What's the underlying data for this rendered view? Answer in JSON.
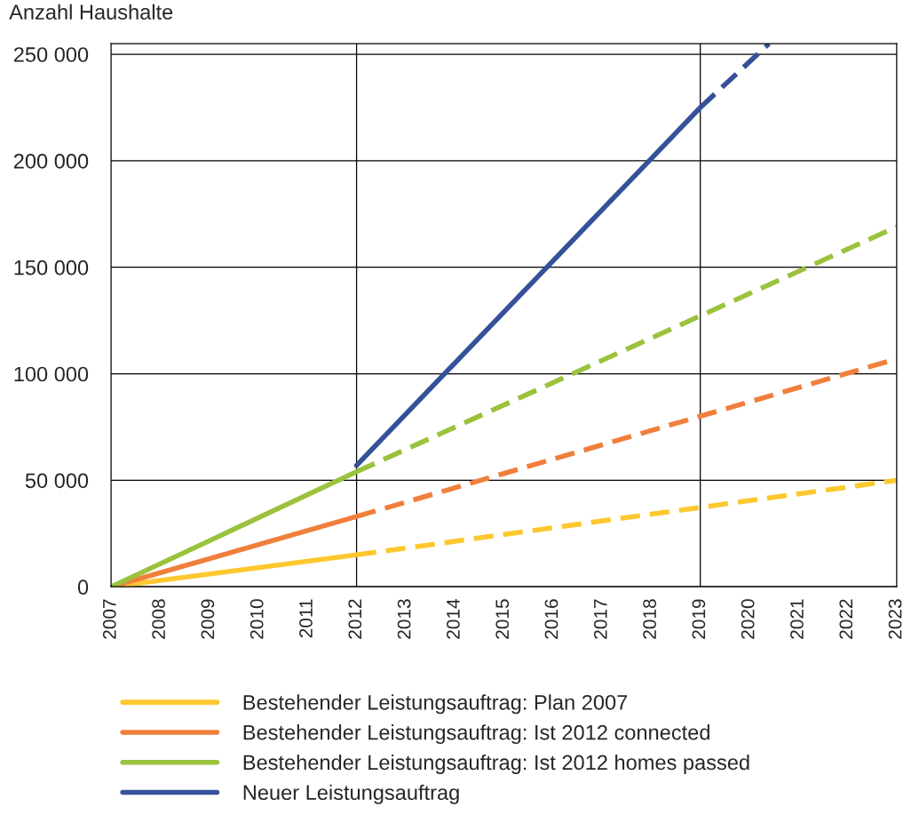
{
  "chart_data": {
    "type": "line",
    "ylabel": "Anzahl Haushalte",
    "xlim": [
      2007,
      2023
    ],
    "xticks": [
      2007,
      2008,
      2009,
      2010,
      2011,
      2012,
      2013,
      2014,
      2015,
      2016,
      2017,
      2018,
      2019,
      2020,
      2021,
      2022,
      2023
    ],
    "ylim": [
      0,
      255000
    ],
    "yticks": [
      {
        "value": 0,
        "label": "0"
      },
      {
        "value": 50000,
        "label": "50 000"
      },
      {
        "value": 100000,
        "label": "100 000"
      },
      {
        "value": 150000,
        "label": "150 000"
      },
      {
        "value": 200000,
        "label": "200 000"
      },
      {
        "value": 250000,
        "label": "250 000"
      }
    ],
    "grid": "y",
    "legend": "bottom",
    "marker": "none",
    "ref_lines": [
      {
        "axis": "x",
        "value": 2012,
        "color": "#000000"
      },
      {
        "axis": "x",
        "value": 2019,
        "color": "#000000"
      }
    ],
    "series": [
      {
        "name": "Bestehender Leistungsauftrag: Plan 2007",
        "color": "#fdc82f",
        "line_style": "solid",
        "x": [
          2007,
          2012
        ],
        "values": [
          0,
          15000
        ]
      },
      {
        "color": "#fdc82f",
        "line_style": "dashed",
        "x": [
          2012,
          2023
        ],
        "values": [
          15000,
          50000
        ]
      },
      {
        "name": "Bestehender Leistungsauftrag: Ist 2012 connected",
        "color": "#f07f3c",
        "line_style": "solid",
        "x": [
          2007,
          2012
        ],
        "values": [
          0,
          33000
        ]
      },
      {
        "color": "#f07f3c",
        "line_style": "dashed",
        "x": [
          2012,
          2023
        ],
        "values": [
          33000,
          107000
        ]
      },
      {
        "name": "Bestehender Leistungsauftrag: Ist 2012 homes passed",
        "color": "#9bc23c",
        "line_style": "solid",
        "x": [
          2007,
          2012
        ],
        "values": [
          0,
          54000
        ]
      },
      {
        "color": "#9bc23c",
        "line_style": "dashed",
        "x": [
          2012,
          2023
        ],
        "values": [
          54000,
          169000
        ]
      },
      {
        "name": "Neuer Leistungsauftrag",
        "color": "#35519a",
        "line_style": "solid",
        "x": [
          2012,
          2019
        ],
        "values": [
          57000,
          225000
        ]
      },
      {
        "color": "#35519a",
        "line_style": "dashed",
        "x": [
          2019,
          2020.4
        ],
        "values": [
          225000,
          255000
        ]
      }
    ]
  }
}
